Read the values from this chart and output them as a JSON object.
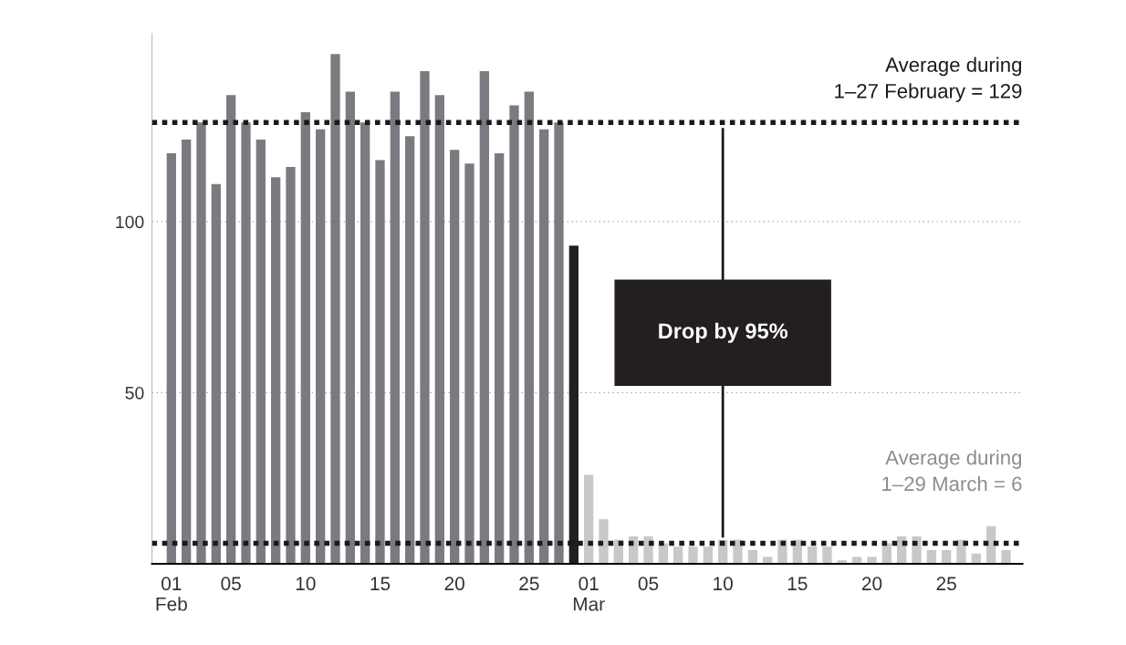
{
  "chart_data": {
    "type": "bar",
    "categories": [
      "01\nFeb",
      null,
      null,
      null,
      "05",
      null,
      null,
      null,
      null,
      "10",
      null,
      null,
      null,
      null,
      "15",
      null,
      null,
      null,
      null,
      "20",
      null,
      null,
      null,
      null,
      "25",
      null,
      null,
      null,
      "01\nMar",
      null,
      null,
      null,
      "05",
      null,
      null,
      null,
      null,
      "10",
      null,
      null,
      null,
      null,
      "15",
      null,
      null,
      null,
      null,
      "20",
      null,
      null,
      null,
      null,
      "25",
      null,
      null,
      null,
      null
    ],
    "values": [
      120,
      124,
      129,
      111,
      137,
      129,
      124,
      113,
      116,
      132,
      127,
      149,
      138,
      129,
      118,
      138,
      125,
      144,
      137,
      121,
      117,
      144,
      120,
      134,
      138,
      127,
      129,
      93,
      26,
      13,
      7,
      8,
      8,
      6,
      5,
      5,
      5,
      7,
      7,
      4,
      2,
      7,
      7,
      5,
      5,
      1,
      2,
      2,
      6,
      8,
      8,
      4,
      4,
      7,
      3,
      11,
      4
    ],
    "colors": [
      "#7a7b80",
      "#7a7b80",
      "#7a7b80",
      "#7a7b80",
      "#7a7b80",
      "#7a7b80",
      "#7a7b80",
      "#7a7b80",
      "#7a7b80",
      "#7a7b80",
      "#7a7b80",
      "#7a7b80",
      "#7a7b80",
      "#7a7b80",
      "#7a7b80",
      "#7a7b80",
      "#7a7b80",
      "#7a7b80",
      "#7a7b80",
      "#7a7b80",
      "#7a7b80",
      "#7a7b80",
      "#7a7b80",
      "#7a7b80",
      "#7a7b80",
      "#7a7b80",
      "#7a7b80",
      "#231f20",
      "#c8c8ca",
      "#c8c8ca",
      "#c8c8ca",
      "#c8c8ca",
      "#c8c8ca",
      "#c8c8ca",
      "#c8c8ca",
      "#c8c8ca",
      "#c8c8ca",
      "#c8c8ca",
      "#c8c8ca",
      "#c8c8ca",
      "#c8c8ca",
      "#c8c8ca",
      "#c8c8ca",
      "#c8c8ca",
      "#c8c8ca",
      "#c8c8ca",
      "#c8c8ca",
      "#c8c8ca",
      "#c8c8ca",
      "#c8c8ca",
      "#c8c8ca",
      "#c8c8ca",
      "#c8c8ca",
      "#c8c8ca",
      "#c8c8ca",
      "#c8c8ca",
      "#c8c8ca"
    ],
    "ylim": [
      0,
      155
    ],
    "yticks": [
      50,
      100
    ],
    "grid": "y",
    "ref_lines": [
      {
        "axis": "y",
        "value": 129,
        "label": "Average during\n1–27 February = 129",
        "color": "#1a1a1a",
        "line_style": "dotted"
      },
      {
        "axis": "y",
        "value": 6,
        "label": "Average during\n1–29 March = 6",
        "color": "#1a1a1a",
        "line_style": "dotted"
      }
    ],
    "annotations": [
      "Drop by 95%"
    ]
  }
}
